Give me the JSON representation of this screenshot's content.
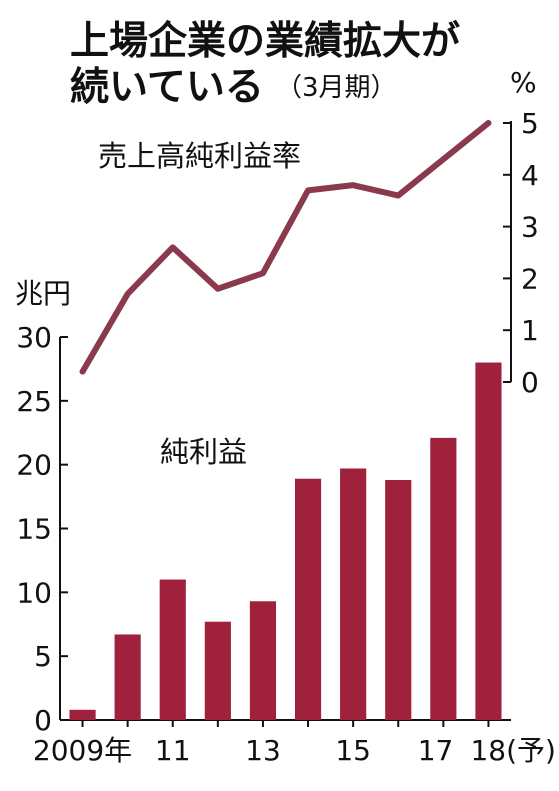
{
  "title": {
    "line1": "上場企業の業績拡大が",
    "line2": "続いている",
    "note": "（3月期）"
  },
  "chart_data": {
    "type": "bar+line",
    "categories": [
      "2009",
      "2010",
      "2011",
      "2012",
      "2013",
      "2014",
      "2015",
      "2016",
      "2017",
      "2018"
    ],
    "x_tick_labels": [
      "2009年",
      "",
      "11",
      "",
      "13",
      "",
      "15",
      "",
      "17",
      "18(予)"
    ],
    "bar_series": {
      "name": "純利益",
      "unit": "兆円",
      "values": [
        0.8,
        6.7,
        11.0,
        7.7,
        9.3,
        18.9,
        19.7,
        18.8,
        22.1,
        28.0
      ],
      "color": "#a0213c",
      "ylim": [
        0,
        30
      ],
      "ticks": [
        "0",
        "5",
        "10",
        "15",
        "20",
        "25",
        "30"
      ]
    },
    "line_series": {
      "name": "売上高純利益率",
      "unit": "%",
      "values": [
        0.2,
        1.7,
        2.6,
        1.8,
        2.1,
        3.7,
        3.8,
        3.6,
        4.3,
        5.0
      ],
      "color": "#8a3a4c",
      "ylim": [
        0,
        5
      ],
      "ticks": [
        "0",
        "1",
        "2",
        "3",
        "4",
        "5"
      ]
    },
    "grid": false,
    "legend": "none"
  }
}
